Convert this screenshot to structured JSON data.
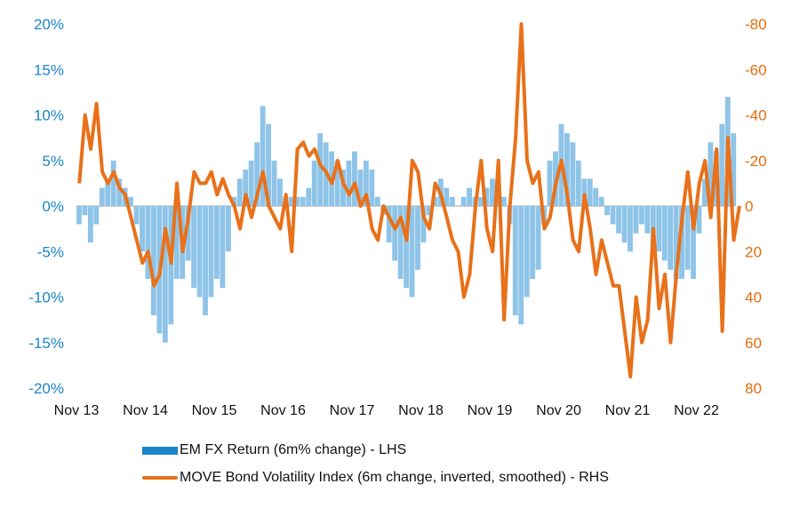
{
  "chart_data": {
    "type": "bar+line",
    "title": "",
    "left_axis": {
      "ticks": [
        "20%",
        "15%",
        "10%",
        "5%",
        "0%",
        "-5%",
        "-10%",
        "-15%",
        "-20%"
      ],
      "range": [
        -20,
        20
      ],
      "color": "#1a85c8"
    },
    "right_axis": {
      "ticks": [
        "-80",
        "-60",
        "-40",
        "-20",
        "0",
        "20",
        "40",
        "60",
        "80"
      ],
      "range": [
        -80,
        80
      ],
      "inverted": true,
      "color": "#e46c0a"
    },
    "x_ticks": [
      "Nov 13",
      "Nov 14",
      "Nov 15",
      "Nov 16",
      "Nov 17",
      "Nov 18",
      "Nov 19",
      "Nov 20",
      "Nov 21",
      "Nov 22"
    ],
    "x_start": "2013-11",
    "grid": false,
    "legend_position": "bottom",
    "series": [
      {
        "name": "EM FX Return (6m% change) - LHS",
        "type": "bar",
        "axis": "left",
        "color": "#8ec4e8",
        "values": [
          -2,
          -1,
          -4,
          -2,
          2,
          3,
          5,
          3,
          2,
          1,
          -2,
          -5,
          -8,
          -12,
          -14,
          -15,
          -13,
          -8,
          -8,
          -6,
          -9,
          -10,
          -12,
          -10,
          -8,
          -9,
          -5,
          1,
          3,
          4,
          5,
          7,
          11,
          9,
          5,
          3,
          1,
          1,
          1,
          1,
          2,
          5,
          8,
          7,
          6,
          5,
          4,
          5,
          6,
          4,
          5,
          4,
          1,
          -1,
          -4,
          -6,
          -8,
          -9,
          -10,
          -7,
          -4,
          -1,
          1,
          3,
          2,
          1,
          0,
          1,
          2,
          1,
          1,
          2,
          3,
          2,
          1,
          -2,
          -12,
          -13,
          -10,
          -8,
          -7,
          -2,
          5,
          6,
          9,
          8,
          7,
          5,
          3,
          3,
          2,
          1,
          -1,
          -2,
          -3,
          -4,
          -5,
          -3,
          -2,
          -3,
          -5,
          -5,
          -6,
          -7,
          -8,
          -8,
          -7,
          -8,
          -3,
          3,
          7,
          6,
          9,
          12,
          8
        ]
      },
      {
        "name": "MOVE Bond Volatility Index (6m change, inverted, smoothed) - RHS",
        "type": "line",
        "axis": "right",
        "color": "#e8711a",
        "values": [
          -10,
          -40,
          -25,
          -45,
          -15,
          -10,
          -15,
          -8,
          -5,
          5,
          15,
          25,
          20,
          35,
          30,
          10,
          25,
          -10,
          20,
          5,
          -15,
          -10,
          -10,
          -15,
          -5,
          -12,
          -5,
          0,
          10,
          -5,
          5,
          -5,
          -15,
          0,
          5,
          10,
          -5,
          20,
          -25,
          -28,
          -22,
          -25,
          -18,
          -15,
          -10,
          -20,
          -10,
          -5,
          -10,
          0,
          -5,
          10,
          15,
          0,
          5,
          10,
          5,
          15,
          -20,
          -15,
          5,
          10,
          -10,
          -5,
          5,
          15,
          20,
          40,
          30,
          0,
          -20,
          10,
          20,
          -20,
          50,
          0,
          -30,
          -80,
          -20,
          -10,
          -15,
          10,
          5,
          -10,
          -20,
          -5,
          15,
          20,
          -5,
          10,
          30,
          15,
          25,
          35,
          35,
          55,
          75,
          40,
          60,
          50,
          10,
          45,
          30,
          60,
          30,
          5,
          -15,
          10,
          -10,
          -20,
          5,
          -25,
          55,
          -30,
          15,
          0
        ]
      }
    ]
  },
  "legend": {
    "bar_label": "EM FX Return (6m% change) - LHS",
    "line_label": "MOVE Bond Volatility Index (6m change, inverted, smoothed) - RHS"
  }
}
